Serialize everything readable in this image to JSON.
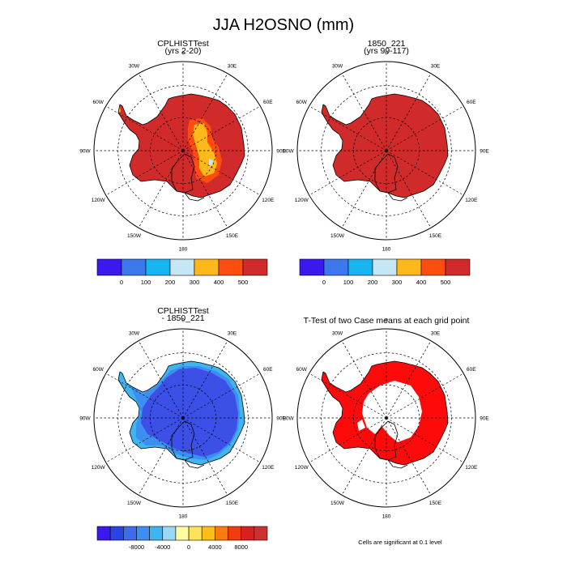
{
  "title": "JJA H2OSNO (mm)",
  "panels": [
    {
      "id": "p1",
      "title_line1": "CPLHISTTest",
      "title_line2": "(yrs 2-20)",
      "kind": "mean"
    },
    {
      "id": "p2",
      "title_line1": "1850_221",
      "title_line2": "(yrs 99-117)",
      "kind": "mean"
    },
    {
      "id": "p3",
      "title_line1": "CPLHISTTest",
      "title_line2": "- 1850_221",
      "kind": "diff"
    },
    {
      "id": "p4",
      "title_line1": "T-Test of two Case means at each grid point",
      "title_line2": "",
      "kind": "ttest"
    }
  ],
  "lon_labels": [
    "0",
    "30E",
    "60E",
    "90E",
    "120E",
    "150E",
    "180",
    "150W",
    "120W",
    "90W",
    "60W",
    "30W"
  ],
  "colorbar_mean": {
    "colors": [
      "#3a18ee",
      "#3c78ec",
      "#17b5f0",
      "#c5e6f5",
      "#fdb819",
      "#ff4d10",
      "#d12a2a"
    ],
    "ticks": [
      "0",
      "100",
      "200",
      "300",
      "400",
      "500"
    ]
  },
  "colorbar_diff": {
    "colors": [
      "#3a18ee",
      "#2a44e4",
      "#3c6cec",
      "#3c8ff0",
      "#40b4f0",
      "#9ad8f5",
      "#fffba0",
      "#fde35a",
      "#fdbd1a",
      "#fd7a10",
      "#f03c10",
      "#d82020",
      "#cc3030"
    ],
    "ticks": [
      "-8000",
      "-4000",
      "0",
      "4000",
      "8000"
    ]
  },
  "footer_note": "Cells are significant at 0.1 level",
  "map_colors": {
    "mean_high": "#d12a2a",
    "mean_orange": "#ff4d10",
    "mean_yellow": "#fdb819",
    "mean_pale": "#c5e6f5",
    "diff_deep": "#3c4fe6",
    "diff_mid": "#3c8ff0",
    "diff_light": "#40b4f0",
    "ttest_red": "#ff0a0a"
  }
}
